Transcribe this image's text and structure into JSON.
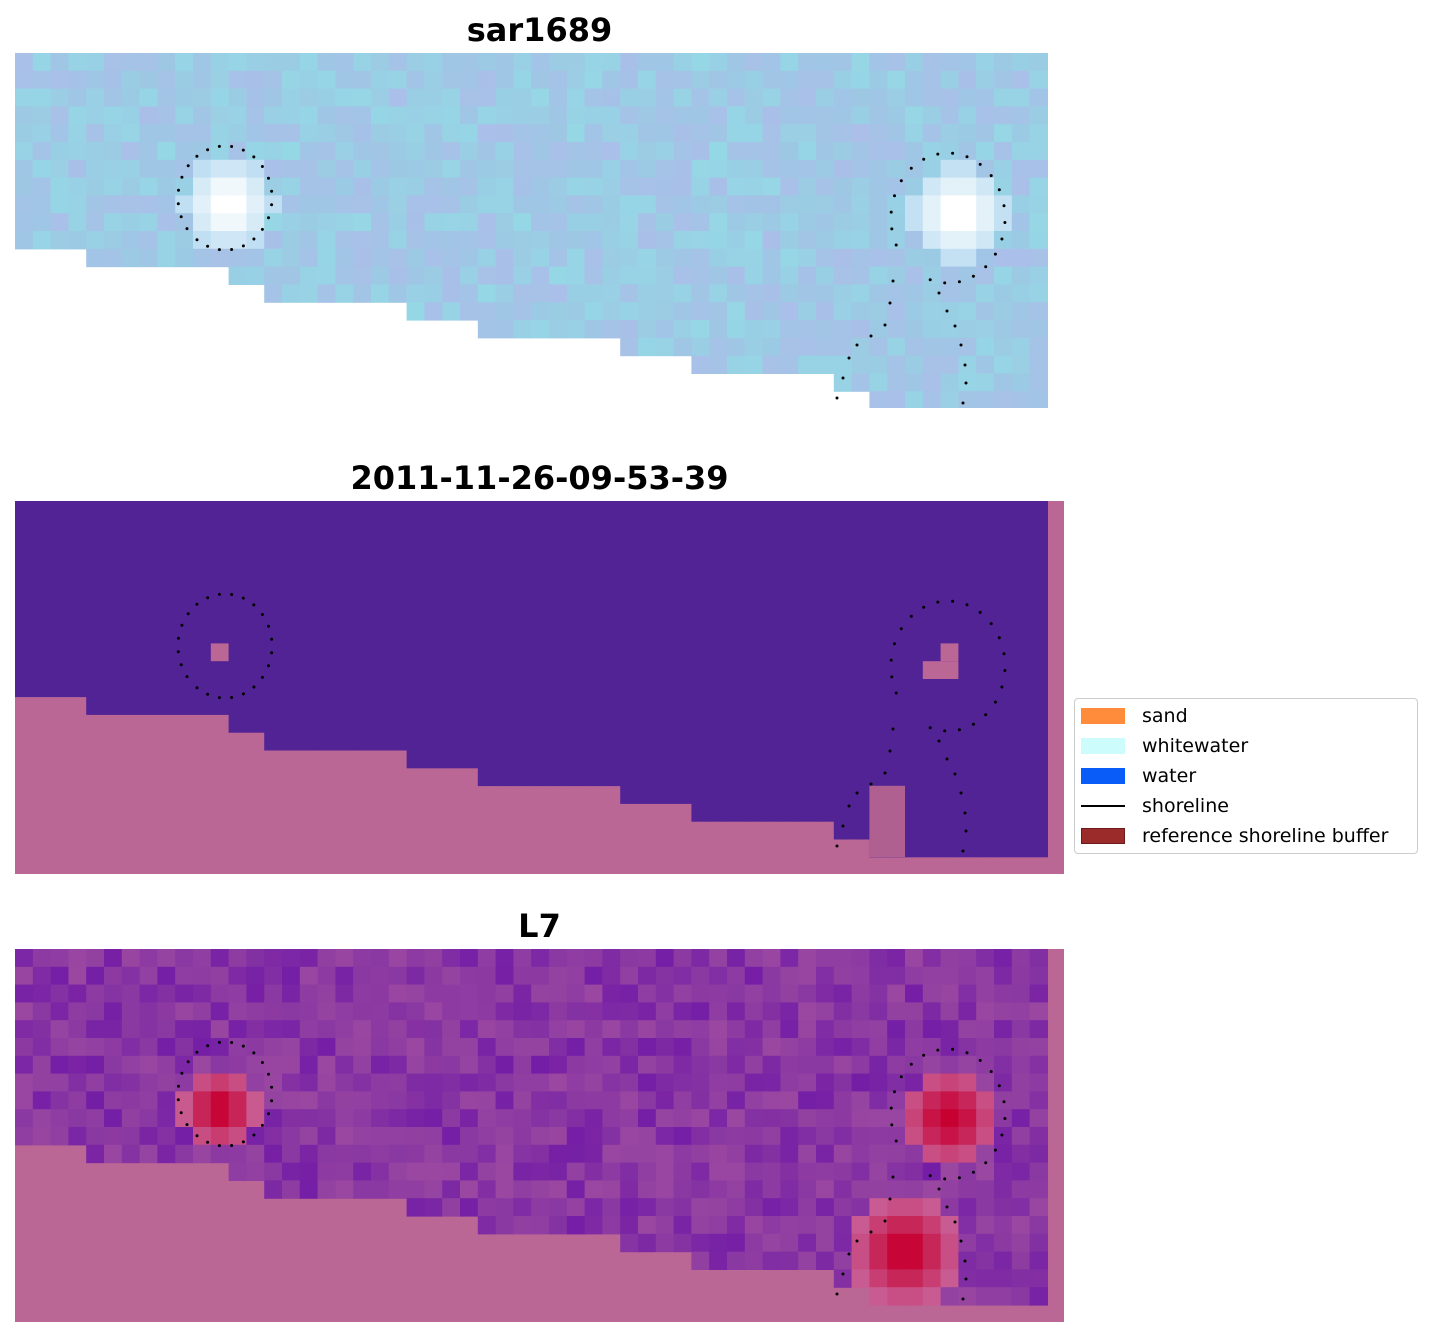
{
  "panels": [
    {
      "id": "rgb",
      "title": "sar1689"
    },
    {
      "id": "classified",
      "title": "2011-11-26-09-53-39"
    },
    {
      "id": "mndwi",
      "title": "L7"
    }
  ],
  "legend": {
    "items": [
      {
        "label": "sand",
        "color": "#ff8c3a",
        "kind": "patch"
      },
      {
        "label": "whitewater",
        "color": "#ccfcfb",
        "kind": "patch"
      },
      {
        "label": "water",
        "color": "#0a5cf8",
        "kind": "patch"
      },
      {
        "label": "shoreline",
        "color": "#000000",
        "kind": "line"
      },
      {
        "label": "reference shoreline buffer",
        "color": "#9b2b2b",
        "kind": "patch"
      }
    ]
  },
  "colors": {
    "water_class": "#522394",
    "buffer_overlay": "#bb6796",
    "rgb_base": "#9dc8e4",
    "mndwi_base": "#7f2a96",
    "mndwi_peak": "#c70032"
  }
}
